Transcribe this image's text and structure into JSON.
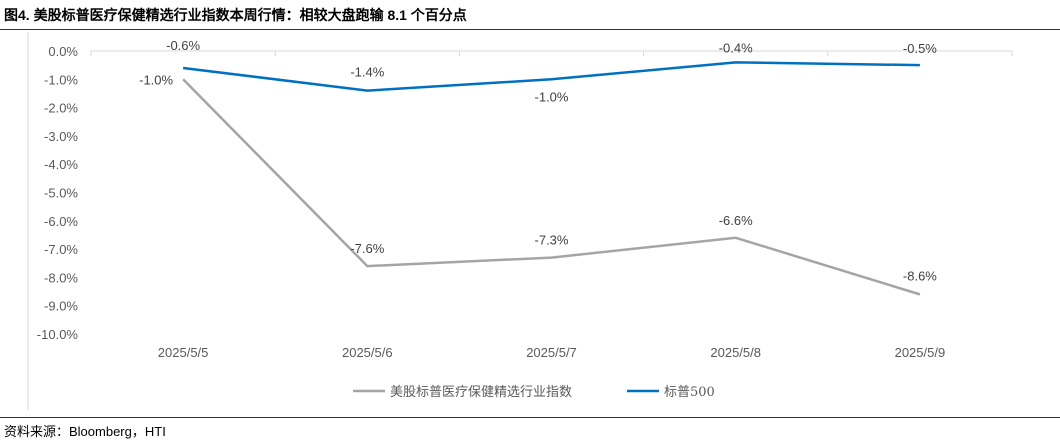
{
  "title": "图4.  美股标普医疗保健精选行业指数本周行情：相较大盘跑输 8.1 个百分点",
  "source": "资料来源：Bloomberg，HTI",
  "chart_data": {
    "type": "line",
    "categories": [
      "2025/5/5",
      "2025/5/6",
      "2025/5/7",
      "2025/5/8",
      "2025/5/9"
    ],
    "ylim": [
      -10,
      0
    ],
    "yticks": [
      "0.0%",
      "-1.0%",
      "-2.0%",
      "-3.0%",
      "-4.0%",
      "-5.0%",
      "-6.0%",
      "-7.0%",
      "-8.0%",
      "-9.0%",
      "-10.0%"
    ],
    "grid": false,
    "legend": "bottom",
    "series": [
      {
        "name": "美股标普医疗保健精选行业指数",
        "color": "#A5A5A5",
        "values": [
          -1.0,
          -7.6,
          -7.3,
          -6.6,
          -8.6
        ],
        "labels": [
          "-1.0%",
          "-7.6%",
          "-7.3%",
          "-6.6%",
          "-8.6%"
        ]
      },
      {
        "name": "标普500",
        "color": "#0070C0",
        "values": [
          -0.6,
          -1.4,
          -1.0,
          -0.4,
          -0.5
        ],
        "labels": [
          "-0.6%",
          "-1.4%",
          "-1.0%",
          "-0.4%",
          "-0.5%"
        ]
      }
    ]
  }
}
